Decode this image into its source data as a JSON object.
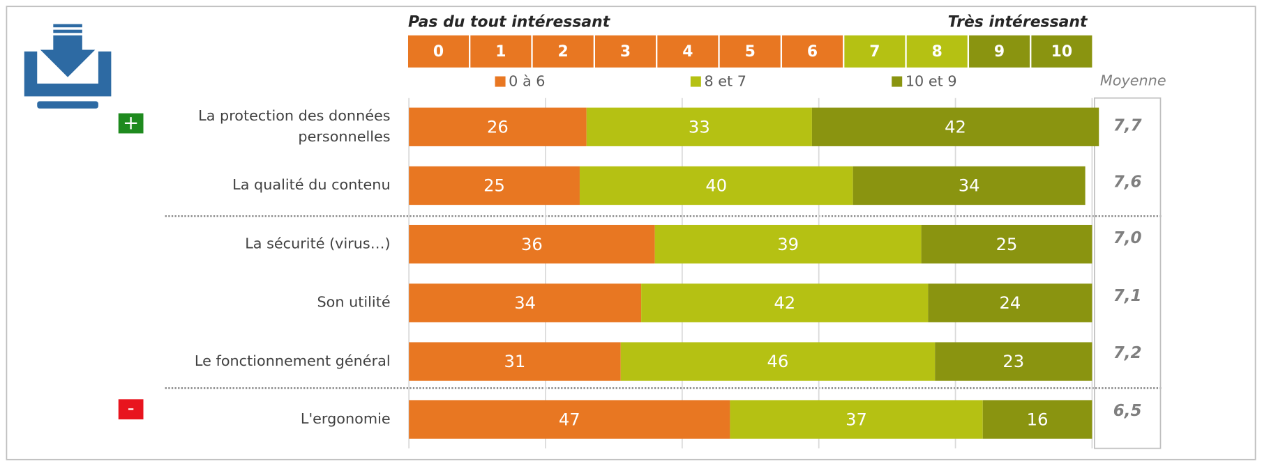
{
  "chart_data": {
    "type": "stacked-barh",
    "scale_left_label": "Pas du tout intéressant",
    "scale_right_label": "Très intéressant",
    "scale": [
      0,
      1,
      2,
      3,
      4,
      5,
      6,
      7,
      8,
      9,
      10
    ],
    "scale_colors": [
      "#E87722",
      "#E87722",
      "#E87722",
      "#E87722",
      "#E87722",
      "#E87722",
      "#E87722",
      "#B5C113",
      "#B5C113",
      "#8A9410",
      "#8A9410"
    ],
    "categories": [
      "La protection des données personnelles",
      "La qualité du contenu",
      "La sécurité (virus…)",
      "Son utilité",
      "Le fonctionnement général",
      "L'ergonomie"
    ],
    "series": [
      {
        "name": "0 à 6",
        "color": "#E87722",
        "values": [
          26,
          25,
          36,
          34,
          31,
          47
        ]
      },
      {
        "name": "8 et 7",
        "color": "#B5C113",
        "values": [
          33,
          40,
          39,
          42,
          46,
          37
        ]
      },
      {
        "name": "10 et 9",
        "color": "#8A9410",
        "values": [
          42,
          34,
          25,
          24,
          23,
          16
        ]
      }
    ],
    "mean_label": "Moyenne",
    "means": [
      7.7,
      7.6,
      7.0,
      7.1,
      7.2,
      6.5
    ],
    "mean_labels": [
      "7,7",
      "7,6",
      "7,0",
      "7,1",
      "7,2",
      "6,5"
    ],
    "annotations": [
      "+",
      "-"
    ],
    "xlim": [
      0,
      100
    ],
    "xticks": [
      0,
      20,
      40,
      60,
      80,
      100
    ],
    "grid": true
  }
}
